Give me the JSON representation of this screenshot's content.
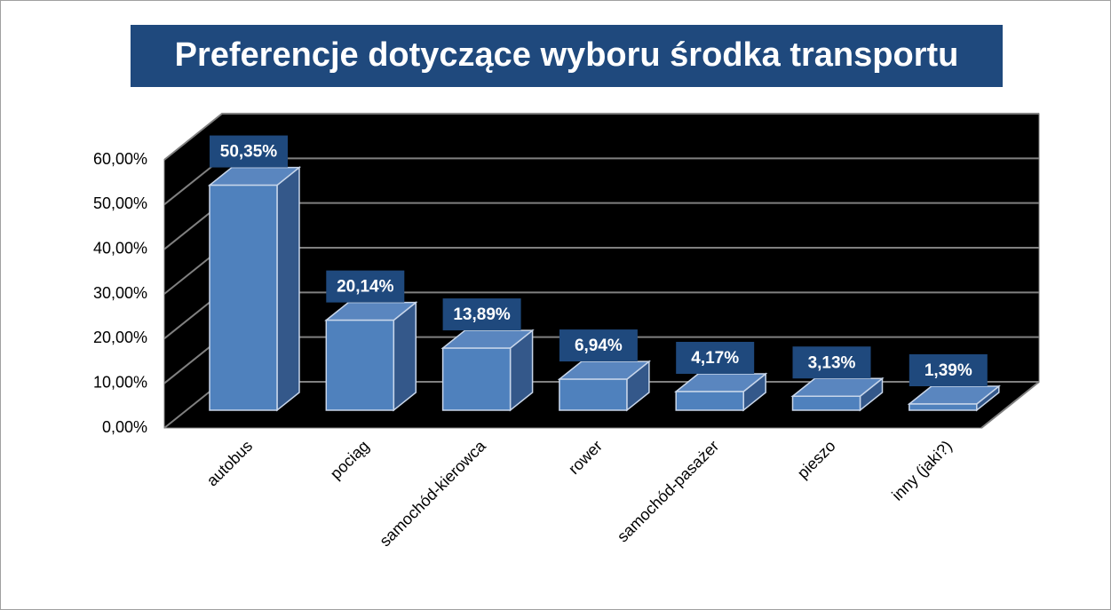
{
  "chart_data": {
    "type": "bar",
    "title": "Preferencje dotyczące wyboru środka transportu",
    "categories": [
      "autobus",
      "pociąg",
      "samochód-kierowca",
      "rower",
      "samochód-pasażer",
      "pieszo",
      "inny (jaki?)"
    ],
    "values": [
      50.35,
      20.14,
      13.89,
      6.94,
      4.17,
      3.13,
      1.39
    ],
    "value_labels": [
      "50,35%",
      "20,14%",
      "13,89%",
      "6,94%",
      "4,17%",
      "3,13%",
      "1,39%"
    ],
    "color": "#4f81bd",
    "ylim": [
      0,
      60
    ],
    "yticks": [
      {
        "value": 0,
        "label": "0,00%"
      },
      {
        "value": 10,
        "label": "10,00%"
      },
      {
        "value": 20,
        "label": "20,00%"
      },
      {
        "value": 30,
        "label": "30,00%"
      },
      {
        "value": 40,
        "label": "40,00%"
      },
      {
        "value": 50,
        "label": "50,00%"
      },
      {
        "value": 60,
        "label": "60,00%"
      }
    ],
    "grid": true
  }
}
